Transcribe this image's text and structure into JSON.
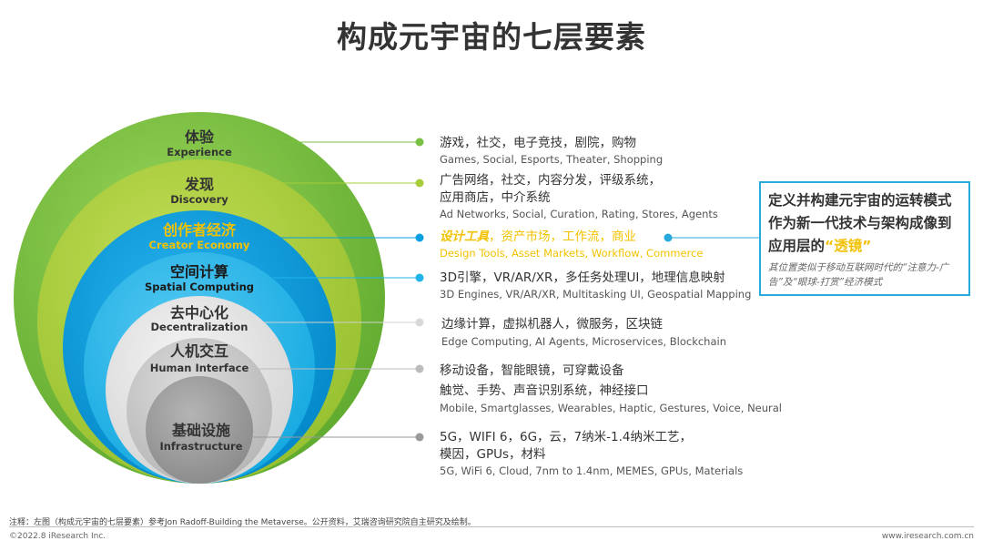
{
  "title": "构成元宇宙的七层要素",
  "colors": {
    "experience": "#7ac143",
    "discovery": "#a6cc3a",
    "creator": "#0a9fe0",
    "spatial": "#1fb5ea",
    "decentral": "#e0e0e0",
    "human": "#c9c9c9",
    "infra": "#a0a0a0",
    "highlight": "#f2c200",
    "callout_border": "#2aa9dc"
  },
  "layers": [
    {
      "cn": "体验",
      "en": "Experience",
      "desc_cn": [
        "游戏，社交，电子竞技，剧院，购物"
      ],
      "desc_en": [
        "Games, Social, Esports, Theater, Shopping"
      ]
    },
    {
      "cn": "发现",
      "en": "Discovery",
      "desc_cn": [
        "广告网络，社交，内容分发，评级系统，",
        "应用商店，中介系统"
      ],
      "desc_en": [
        "Ad Networks, Social, Curation, Rating, Stores, Agents"
      ]
    },
    {
      "cn": "创作者经济",
      "en": "Creator Economy",
      "desc_cn_em": "设计工具",
      "desc_cn_rest": "，资产市场，工作流，商业",
      "desc_en": [
        "Design Tools, Asset Markets, Workflow, Commerce"
      ]
    },
    {
      "cn": "空间计算",
      "en": "Spatial Computing",
      "desc_cn": [
        "3D引擎，VR/AR/XR，多任务处理UI，地理信息映射"
      ],
      "desc_en": [
        "3D Engines, VR/AR/XR, Multitasking UI, Geospatial Mapping"
      ]
    },
    {
      "cn": "去中心化",
      "en": "Decentralization",
      "desc_cn": [
        "边缘计算，虚拟机器人，微服务，区块链"
      ],
      "desc_en": [
        "Edge Computing, AI Agents, Microservices, Blockchain"
      ]
    },
    {
      "cn": "人机交互",
      "en": "Human Interface",
      "desc_cn": [
        "移动设备，智能眼镜，可穿戴设备",
        "触觉、手势、声音识别系统，神经接口"
      ],
      "desc_en": [
        "Mobile, Smartglasses, Wearables, Haptic, Gestures, Voice, Neural"
      ]
    },
    {
      "cn": "基础设施",
      "en": "Infrastructure",
      "desc_cn": [
        "5G，WIFI 6，6G，云，7纳米-1.4纳米工艺，",
        "模因，GPUs，材料"
      ],
      "desc_en": [
        "5G, WiFi 6, Cloud, 7nm to 1.4nm, MEMES, GPUs, Materials"
      ]
    }
  ],
  "callout": {
    "line1": "定义并构建元宇宙的运转模式",
    "line2": "作为新一代技术与架构成像到",
    "line3_prefix": "应用层的",
    "line3_quote": "“透镜”",
    "note": "其位置类似于移动互联网时代的“注意力-广告”及“眼球-打赏”经济模式"
  },
  "footnote": "注释：左图（构成元宇宙的七层要素）参考Jon Radoff-Building the Metaverse。公开资料，艾瑞咨询研究院自主研究及绘制。",
  "copyright": "©2022.8 iResearch Inc.",
  "site": "www.iresearch.com.cn"
}
